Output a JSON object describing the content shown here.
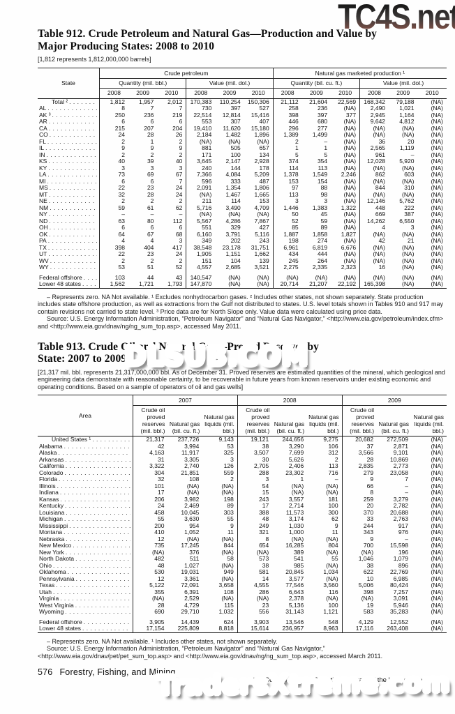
{
  "watermarks": {
    "top": "TC4S.net",
    "middle": "DLSUB.COM",
    "bottom": "TradersXtreme.com"
  },
  "table912": {
    "title": [
      "Table 912. Crude Petroleum and Natural Gas—Production and Value by",
      "Major Producing States: 2008 to 2010"
    ],
    "headnote": "[1,812 represents 1,812,000,000 barrels]",
    "header": {
      "state": "State",
      "groups": [
        {
          "label": "Crude petroleum",
          "subs": [
            "Quantity (mil. bbl.)",
            "Value (mil. dol.)"
          ]
        },
        {
          "label": "Natural gas marketed production ¹",
          "subs": [
            "Quantity (bil. cu. ft.)",
            "Value (mil. dol.)"
          ]
        }
      ],
      "years": [
        "2008",
        "2009",
        "2010"
      ]
    },
    "rows": [
      {
        "label": "Total ²",
        "bold": true,
        "values": [
          "1,812",
          "1,957",
          "2,012",
          "170,383",
          "110,254",
          "150,306",
          "21,112",
          "21,604",
          "22,569",
          "168,342",
          "79,188",
          "(NA)"
        ]
      },
      {
        "label": "AL",
        "values": [
          "8",
          "7",
          "7",
          "730",
          "397",
          "527",
          "258",
          "236",
          "(NA)",
          "2,490",
          "1,021",
          "(NA)"
        ]
      },
      {
        "label": "AK ³",
        "values": [
          "250",
          "236",
          "219",
          "22,514",
          "12,814",
          "15,416",
          "398",
          "397",
          "377",
          "2,945",
          "1,164",
          "(NA)"
        ]
      },
      {
        "label": "AR",
        "values": [
          "6",
          "6",
          "6",
          "553",
          "307",
          "407",
          "446",
          "680",
          "(NA)",
          "9,642",
          "4,812",
          "(NA)"
        ]
      },
      {
        "label": "CA",
        "values": [
          "215",
          "207",
          "204",
          "19,410",
          "11,620",
          "15,180",
          "296",
          "277",
          "(NA)",
          "(NA)",
          "(NA)",
          "(NA)"
        ]
      },
      {
        "label": "CO",
        "values": [
          "24",
          "28",
          "26",
          "2,184",
          "1,482",
          "1,896",
          "1,389",
          "1,499",
          "(NA)",
          "(NA)",
          "(NA)",
          "(NA)"
        ]
      },
      {
        "label": "FL",
        "values": [
          "2",
          "1",
          "2",
          "(NA)",
          "(NA)",
          "(NA)",
          "2",
          "–",
          "(NA)",
          "36",
          "20",
          "(NA)"
        ]
      },
      {
        "label": "IL",
        "values": [
          "9",
          "9",
          "9",
          "881",
          "505",
          "657",
          "1",
          "1",
          "(NA)",
          "2,565",
          "1,119",
          "(NA)"
        ]
      },
      {
        "label": "IN",
        "values": [
          "2",
          "2",
          "2",
          "171",
          "100",
          "134",
          "5",
          "5",
          "(NA)",
          "961",
          "–",
          "(NA)"
        ]
      },
      {
        "label": "KS",
        "values": [
          "40",
          "39",
          "40",
          "3,645",
          "2,147",
          "2,928",
          "374",
          "354",
          "(NA)",
          "12,028",
          "5,920",
          "(NA)"
        ]
      },
      {
        "label": "KY",
        "values": [
          "3",
          "3",
          "3",
          "240",
          "144",
          "178",
          "114",
          "113",
          "(NA)",
          "(NA)",
          "(NA)",
          "(NA)"
        ]
      },
      {
        "label": "LA",
        "values": [
          "73",
          "69",
          "67",
          "7,366",
          "4,084",
          "5,209",
          "1,378",
          "1,549",
          "2,246",
          "862",
          "603",
          "(NA)"
        ]
      },
      {
        "label": "MI",
        "values": [
          "6",
          "6",
          "7",
          "596",
          "333",
          "487",
          "153",
          "154",
          "(NA)",
          "(NA)",
          "(NA)",
          "(NA)"
        ]
      },
      {
        "label": "MS",
        "values": [
          "22",
          "23",
          "24",
          "2,091",
          "1,354",
          "1,806",
          "97",
          "88",
          "(NA)",
          "844",
          "310",
          "(NA)"
        ]
      },
      {
        "label": "MT",
        "values": [
          "32",
          "28",
          "24",
          "(NA)",
          "1,467",
          "1,665",
          "113",
          "98",
          "(NA)",
          "(NA)",
          "(NA)",
          "(NA)"
        ]
      },
      {
        "label": "NE",
        "values": [
          "2",
          "2",
          "2",
          "211",
          "114",
          "153",
          "3",
          "3",
          "(NA)",
          "12,146",
          "5,762",
          "(NA)"
        ]
      },
      {
        "label": "NM",
        "values": [
          "59",
          "61",
          "62",
          "5,716",
          "3,490",
          "4,709",
          "1,446",
          "1,383",
          "1,322",
          "448",
          "222",
          "(NA)"
        ]
      },
      {
        "label": "NY",
        "values": [
          "–",
          "–",
          "–",
          "(NA)",
          "(NA)",
          "(NA)",
          "50",
          "45",
          "(NA)",
          "669",
          "387",
          "(NA)"
        ]
      },
      {
        "label": "ND",
        "values": [
          "63",
          "80",
          "112",
          "5,567",
          "4,286",
          "7,867",
          "52",
          "59",
          "(NA)",
          "14,262",
          "6,550",
          "(NA)"
        ]
      },
      {
        "label": "OH",
        "values": [
          "6",
          "6",
          "6",
          "551",
          "329",
          "427",
          "85",
          "89",
          "(NA)",
          "4",
          "3",
          "(NA)"
        ]
      },
      {
        "label": "OK",
        "values": [
          "64",
          "67",
          "68",
          "6,160",
          "3,791",
          "5,116",
          "1,887",
          "1,858",
          "1,827",
          "(NA)",
          "(NA)",
          "(NA)"
        ]
      },
      {
        "label": "PA",
        "values": [
          "4",
          "4",
          "3",
          "349",
          "202",
          "243",
          "198",
          "274",
          "(NA)",
          "42",
          "21",
          "(NA)"
        ]
      },
      {
        "label": "TX",
        "values": [
          "398",
          "404",
          "417",
          "38,548",
          "23,178",
          "31,751",
          "6,961",
          "6,819",
          "6,676",
          "(NA)",
          "(NA)",
          "(NA)"
        ]
      },
      {
        "label": "UT",
        "values": [
          "22",
          "23",
          "24",
          "1,905",
          "1,151",
          "1,662",
          "434",
          "444",
          "(NA)",
          "(NA)",
          "(NA)",
          "(NA)"
        ]
      },
      {
        "label": "WV",
        "values": [
          "2",
          "2",
          "2",
          "151",
          "104",
          "139",
          "245",
          "264",
          "(NA)",
          "(NA)",
          "(NA)",
          "(NA)"
        ]
      },
      {
        "label": "WY",
        "values": [
          "53",
          "51",
          "52",
          "4,557",
          "2,685",
          "3,521",
          "2,275",
          "2,335",
          "2,323",
          "16",
          "(NA)",
          "(NA)"
        ]
      }
    ],
    "summary_rows": [
      {
        "label": "Federal offshore",
        "values": [
          "103",
          "44",
          "43",
          "140,547",
          "(NA)",
          "(NA)",
          "(NA)",
          "(NA)",
          "(NA)",
          "(NA)",
          "(NA)",
          "(NA)"
        ]
      },
      {
        "label": "Lower 48 states",
        "values": [
          "1,562",
          "1,721",
          "1,793",
          "147,870",
          "(NA)",
          "(NA)",
          "20,714",
          "21,207",
          "22,192",
          "165,398",
          "(NA)",
          "(NA)"
        ]
      }
    ],
    "notes": [
      "– Represents zero. NA Not available. ¹ Excludes nonhydrocarbon gases. ² Includes other states, not shown separately. State production includes state offshore production, as well as extractions from the Gulf not distributed to states. U.S. level totals shown in Tables 910 and 917 may contain revisions not carried to state level. ³ Price data are for North Slope only. Value data were calculated using price data."
    ],
    "source": "Source: U.S. Energy Information Administration, “Petroleum Navigator” and “Natural Gas Navigator,” <http://www.eia.gov/petroleum/index.cfm> and <http://www.eia.gov/dnav/ng/ng_sum_top.asp>, accessed May 2011."
  },
  "table913": {
    "title": [
      "Table 913. Crude Oil and Natural Gas—Proved Reserves by",
      "State: 2007 to 2009"
    ],
    "headnote": "[21,317 mil. bbl. represents 21,317,000,000 bbl. As of December 31. Proved reserves are estimated quantities of the mineral, which geological and engineering data demonstrate with reasonable certainty, to be recoverable in future years from known reservoirs under existing economic and operating conditions. Based on a sample of operators of oil and gas wells]",
    "header": {
      "area": "Area",
      "years": [
        "2007",
        "2008",
        "2009"
      ],
      "units": [
        "Crude oil proved reserves (mil. bbl.)",
        "Natural gas (bil. cu. ft.)",
        "Natural gas liquids (mil. bbl.)"
      ]
    },
    "rows": [
      {
        "label": "United States ¹",
        "bold": true,
        "values": [
          "21,317",
          "237,726",
          "9,143",
          "19,121",
          "244,656",
          "9,275",
          "20,682",
          "272,509",
          "(NA)"
        ]
      },
      {
        "label": "Alabama",
        "values": [
          "42",
          "3,994",
          "53",
          "38",
          "3,290",
          "106",
          "37",
          "2,871",
          "(NA)"
        ]
      },
      {
        "label": "Alaska",
        "values": [
          "4,163",
          "11,917",
          "325",
          "3,507",
          "7,699",
          "312",
          "3,566",
          "9,101",
          "(NA)"
        ]
      },
      {
        "label": "Arkansas",
        "values": [
          "31",
          "3,305",
          "3",
          "30",
          "5,626",
          "2",
          "28",
          "10,869",
          "(NA)"
        ]
      },
      {
        "label": "California",
        "values": [
          "3,322",
          "2,740",
          "126",
          "2,705",
          "2,406",
          "113",
          "2,835",
          "2,773",
          "(NA)"
        ]
      },
      {
        "label": "Colorado",
        "values": [
          "304",
          "21,851",
          "559",
          "288",
          "23,302",
          "716",
          "279",
          "23,058",
          "(NA)"
        ]
      },
      {
        "label": "Florida",
        "values": [
          "32",
          "108",
          "2",
          "3",
          "1",
          "–",
          "9",
          "7",
          "(NA)"
        ]
      },
      {
        "label": "Illinois",
        "values": [
          "101",
          "(NA)",
          "(NA)",
          "54",
          "(NA)",
          "(NA)",
          "66",
          "–",
          "(NA)"
        ]
      },
      {
        "label": "Indiana",
        "values": [
          "17",
          "(NA)",
          "(NA)",
          "15",
          "(NA)",
          "(NA)",
          "8",
          "–",
          "(NA)"
        ]
      },
      {
        "label": "Kansas",
        "values": [
          "206",
          "3,982",
          "198",
          "243",
          "3,557",
          "181",
          "259",
          "3,279",
          "(NA)"
        ]
      },
      {
        "label": "Kentucky",
        "values": [
          "24",
          "2,469",
          "89",
          "17",
          "2,714",
          "100",
          "20",
          "2,782",
          "(NA)"
        ]
      },
      {
        "label": "Louisiana",
        "values": [
          "458",
          "10,045",
          "303",
          "388",
          "11,573",
          "300",
          "370",
          "20,688",
          "(NA)"
        ]
      },
      {
        "label": "Michigan",
        "values": [
          "55",
          "3,630",
          "55",
          "48",
          "3,174",
          "62",
          "33",
          "2,763",
          "(NA)"
        ]
      },
      {
        "label": "Mississippi",
        "values": [
          "200",
          "954",
          "9",
          "249",
          "1,030",
          "9",
          "244",
          "917",
          "(NA)"
        ]
      },
      {
        "label": "Montana",
        "values": [
          "410",
          "1,052",
          "11",
          "321",
          "1,000",
          "11",
          "343",
          "976",
          "(NA)"
        ]
      },
      {
        "label": "Nebraska",
        "values": [
          "12",
          "(NA)",
          "(NA)",
          "8",
          "(NA)",
          "(NA)",
          "9",
          "–",
          "(NA)"
        ]
      },
      {
        "label": "New Mexico",
        "values": [
          "735",
          "17,245",
          "844",
          "654",
          "16,285",
          "804",
          "700",
          "15,598",
          "(NA)"
        ]
      },
      {
        "label": "New York",
        "values": [
          "(NA)",
          "376",
          "(NA)",
          "(NA)",
          "389",
          "(NA)",
          "(NA)",
          "196",
          "(NA)"
        ]
      },
      {
        "label": "North Dakota",
        "values": [
          "482",
          "511",
          "58",
          "573",
          "541",
          "55",
          "1,046",
          "1,079",
          "(NA)"
        ]
      },
      {
        "label": "Ohio",
        "values": [
          "48",
          "1,027",
          "(NA)",
          "38",
          "985",
          "(NA)",
          "38",
          "896",
          "(NA)"
        ]
      },
      {
        "label": "Oklahoma",
        "values": [
          "530",
          "19,031",
          "949",
          "581",
          "20,845",
          "1,034",
          "622",
          "22,769",
          "(NA)"
        ]
      },
      {
        "label": "Pennsylvania",
        "values": [
          "12",
          "3,361",
          "(NA)",
          "14",
          "3,577",
          "(NA)",
          "10",
          "6,985",
          "(NA)"
        ]
      },
      {
        "label": "Texas",
        "values": [
          "5,122",
          "72,091",
          "3,658",
          "4,555",
          "77,546",
          "3,560",
          "5,006",
          "80,424",
          "(NA)"
        ]
      },
      {
        "label": "Utah",
        "values": [
          "355",
          "6,391",
          "108",
          "286",
          "6,643",
          "116",
          "398",
          "7,257",
          "(NA)"
        ]
      },
      {
        "label": "Virginia",
        "values": [
          "(NA)",
          "2,529",
          "(NA)",
          "(NA)",
          "2,378",
          "(NA)",
          "(NA)",
          "3,091",
          "(NA)"
        ]
      },
      {
        "label": "West Virginia",
        "values": [
          "28",
          "4,729",
          "115",
          "23",
          "5,136",
          "100",
          "19",
          "5,946",
          "(NA)"
        ]
      },
      {
        "label": "Wyoming",
        "values": [
          "690",
          "29,710",
          "1,032",
          "556",
          "31,143",
          "1,121",
          "583",
          "35,283",
          "(NA)"
        ]
      }
    ],
    "summary_rows": [
      {
        "label": "Federal offshore",
        "values": [
          "3,905",
          "14,439",
          "624",
          "3,903",
          "13,546",
          "548",
          "4,129",
          "12,552",
          "(NA)"
        ]
      },
      {
        "label": "Lower 48 states",
        "values": [
          "17,154",
          "225,809",
          "8,818",
          "15,614",
          "236,957",
          "8,963",
          "17,116",
          "263,408",
          "(NA)"
        ]
      }
    ],
    "notes": [
      "– Represents zero. NA Not available. ¹ Includes other states, not shown separately."
    ],
    "source": "Source: U.S. Energy Information Administration, “Petroleum Navigator” and “Natural Gas Navigator,” <http://www.eia.gov/dnav/pet/pet_sum_top.asp> and <http://www.eia.gov/dnav/ng/ng_sum_top.asp>, accessed March 2011."
  },
  "footer": {
    "page": "576",
    "section": "Forestry, Fishing, and Mining",
    "credit": "U.S. Census Bureau, Statistical Abstract of the United States: 2012"
  }
}
